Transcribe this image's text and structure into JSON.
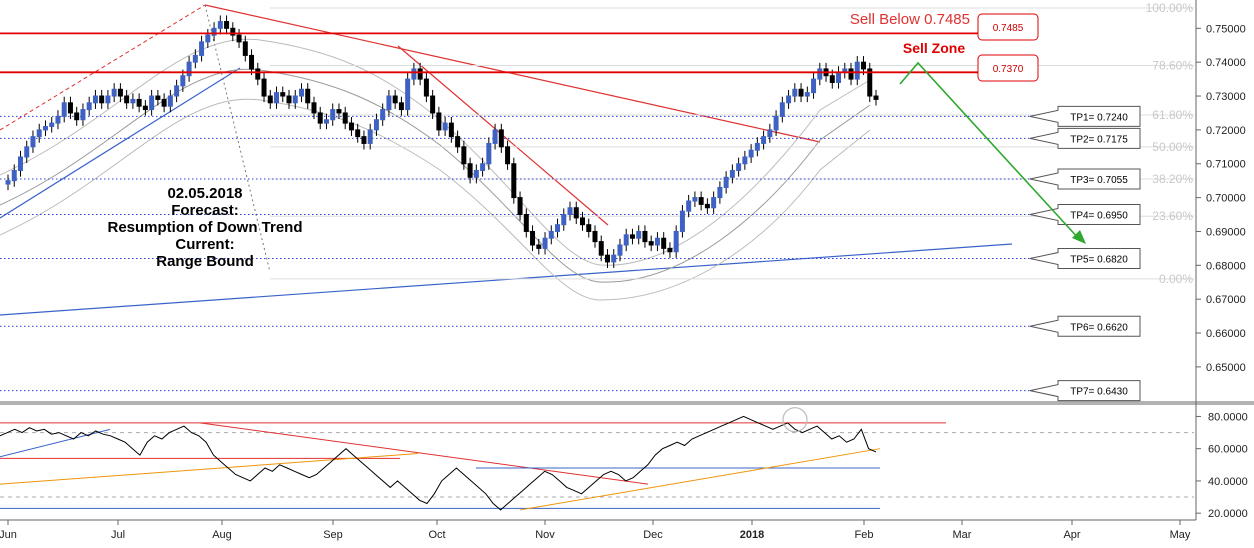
{
  "chart_data": {
    "type": "candlestick",
    "instrument_axis": {
      "y_ticks": [
        "0.75000",
        "0.74000",
        "0.73000",
        "0.72000",
        "0.71000",
        "0.70000",
        "0.69000",
        "0.68000",
        "0.67000",
        "0.66000",
        "0.65000"
      ],
      "ylim": [
        0.6414,
        0.756
      ],
      "x_ticks": [
        "Jun",
        "Jul",
        "Aug",
        "Sep",
        "Oct",
        "Nov",
        "Dec",
        "2018",
        "Feb",
        "Mar",
        "Apr",
        "May"
      ]
    },
    "fib_levels": [
      {
        "label": "100.00%",
        "value": 0.756
      },
      {
        "label": "78.60%",
        "value": 0.739
      },
      {
        "label": "61.80%",
        "value": 0.7244
      },
      {
        "label": "50.00%",
        "value": 0.715
      },
      {
        "label": "38.20%",
        "value": 0.7055
      },
      {
        "label": "23.60%",
        "value": 0.6945
      },
      {
        "label": "0.00%",
        "value": 0.676
      }
    ],
    "sell_below": {
      "label": "Sell Below 0.7485",
      "value": 0.7485
    },
    "sell_zone": {
      "label": "Sell Zone",
      "upper_label": "0.7485",
      "lower_label": "0.7370",
      "upper": 0.7485,
      "lower": 0.737
    },
    "targets": [
      {
        "label": "TP1= 0.7240",
        "value": 0.724
      },
      {
        "label": "TP2= 0.7175",
        "value": 0.7175
      },
      {
        "label": "TP3= 0.7055",
        "value": 0.7055
      },
      {
        "label": "TP4= 0.6950",
        "value": 0.695
      },
      {
        "label": "TP5= 0.6820",
        "value": 0.682
      },
      {
        "label": "TP6= 0.6620",
        "value": 0.662
      },
      {
        "label": "TP7= 0.6430",
        "value": 0.643
      }
    ],
    "annotation_lines": [
      "02.05.2018",
      "Forecast:",
      "Resumption of Down Trend",
      "Current:",
      "Range Bound"
    ],
    "price_series": [
      0.705,
      0.708,
      0.712,
      0.715,
      0.718,
      0.72,
      0.721,
      0.722,
      0.724,
      0.728,
      0.725,
      0.723,
      0.726,
      0.728,
      0.73,
      0.728,
      0.73,
      0.732,
      0.73,
      0.728,
      0.729,
      0.727,
      0.726,
      0.73,
      0.729,
      0.727,
      0.73,
      0.733,
      0.736,
      0.74,
      0.742,
      0.746,
      0.748,
      0.75,
      0.752,
      0.75,
      0.748,
      0.746,
      0.742,
      0.738,
      0.735,
      0.73,
      0.728,
      0.731,
      0.73,
      0.728,
      0.73,
      0.732,
      0.728,
      0.725,
      0.722,
      0.723,
      0.726,
      0.725,
      0.722,
      0.72,
      0.718,
      0.716,
      0.72,
      0.723,
      0.726,
      0.73,
      0.728,
      0.726,
      0.735,
      0.738,
      0.735,
      0.73,
      0.725,
      0.72,
      0.722,
      0.718,
      0.715,
      0.71,
      0.706,
      0.708,
      0.71,
      0.716,
      0.72,
      0.715,
      0.71,
      0.7,
      0.695,
      0.69,
      0.686,
      0.685,
      0.688,
      0.69,
      0.692,
      0.695,
      0.697,
      0.694,
      0.692,
      0.69,
      0.687,
      0.683,
      0.681,
      0.683,
      0.686,
      0.689,
      0.688,
      0.69,
      0.687,
      0.686,
      0.688,
      0.685,
      0.684,
      0.69,
      0.696,
      0.699,
      0.7,
      0.698,
      0.697,
      0.7,
      0.703,
      0.706,
      0.708,
      0.71,
      0.712,
      0.714,
      0.716,
      0.718,
      0.72,
      0.724,
      0.728,
      0.73,
      0.732,
      0.73,
      0.731,
      0.735,
      0.738,
      0.736,
      0.734,
      0.737,
      0.738,
      0.735,
      0.74,
      0.738,
      0.73,
      0.729
    ],
    "oscillator": {
      "y_ticks": [
        "80.0000",
        "60.0000",
        "40.0000",
        "20.0000"
      ],
      "ylim": [
        17,
        84
      ],
      "dashed_levels": [
        70,
        30
      ],
      "series": [
        68,
        70,
        72,
        70,
        73,
        71,
        72,
        69,
        70,
        68,
        66,
        70,
        68,
        71,
        69,
        68,
        66,
        64,
        60,
        56,
        64,
        68,
        66,
        70,
        72,
        74,
        70,
        68,
        64,
        56,
        52,
        48,
        44,
        42,
        40,
        44,
        48,
        46,
        50,
        48,
        46,
        44,
        42,
        44,
        48,
        52,
        56,
        60,
        56,
        52,
        48,
        44,
        40,
        36,
        40,
        36,
        32,
        28,
        26,
        32,
        40,
        44,
        48,
        44,
        40,
        36,
        32,
        26,
        22,
        26,
        30,
        34,
        38,
        42,
        46,
        44,
        40,
        36,
        34,
        32,
        36,
        40,
        44,
        46,
        44,
        40,
        42,
        46,
        50,
        56,
        60,
        62,
        64,
        62,
        66,
        68,
        70,
        72,
        74,
        76,
        78,
        80,
        78,
        76,
        74,
        72,
        74,
        76,
        72,
        70,
        72,
        74,
        70,
        66,
        68,
        64,
        66,
        72,
        60,
        58
      ]
    }
  }
}
